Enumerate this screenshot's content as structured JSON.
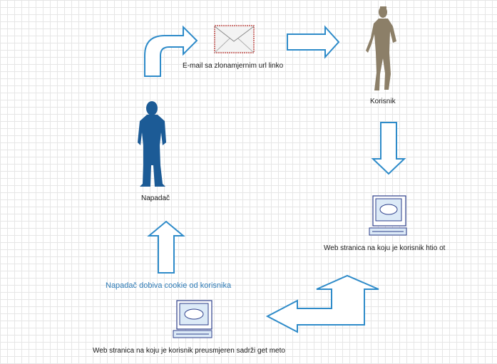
{
  "diagram": {
    "labels": {
      "email": "E-mail sa zlonamjernim url linko",
      "user": "Korisnik",
      "attacker": "Napadač",
      "site_user": "Web stranica na koju je korisnik htio ot",
      "attacker_gets": "Napadač dobiva cookie od korisnika",
      "site_redirect": "Web stranica na koju je korisnik preusmjeren sadrži get meto"
    },
    "nodes": [
      {
        "id": "attacker",
        "kind": "person",
        "color": "#1c5b96"
      },
      {
        "id": "email",
        "kind": "envelope",
        "border_color": "#c0504d"
      },
      {
        "id": "user",
        "kind": "person",
        "color": "#8c7f68"
      },
      {
        "id": "site_user",
        "kind": "computer"
      },
      {
        "id": "site_redirect",
        "kind": "computer"
      }
    ],
    "edges": [
      {
        "from": "attacker",
        "to": "email"
      },
      {
        "from": "email",
        "to": "user"
      },
      {
        "from": "user",
        "to": "site_user"
      },
      {
        "from": "site_user",
        "to": "site_redirect"
      },
      {
        "from": "site_redirect",
        "to": "attacker"
      }
    ],
    "colors": {
      "arrow": "#2e8bc9",
      "computer_stroke": "#2c3e8a",
      "computer_fill": "#dceaf7",
      "grid": "#e6e6e6"
    }
  }
}
